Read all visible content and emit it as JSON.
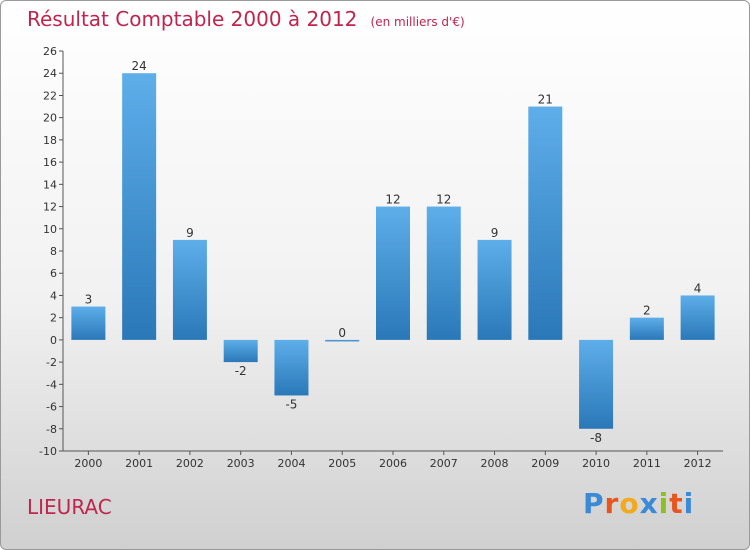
{
  "chart_data": {
    "type": "bar",
    "title": "Résultat Comptable 2000 à 2012",
    "unit_label": "(en milliers d'€)",
    "categories": [
      "2000",
      "2001",
      "2002",
      "2003",
      "2004",
      "2005",
      "2006",
      "2007",
      "2008",
      "2009",
      "2010",
      "2011",
      "2012"
    ],
    "values": [
      3,
      24,
      9,
      -2,
      -5,
      0,
      12,
      12,
      9,
      21,
      -8,
      2,
      4
    ],
    "ylim": [
      -10,
      26
    ],
    "yticks": [
      -10,
      -8,
      -6,
      -4,
      -2,
      0,
      2,
      4,
      6,
      8,
      10,
      12,
      14,
      16,
      18,
      20,
      22,
      24,
      26
    ],
    "xlabel": "",
    "ylabel": "",
    "grid": false,
    "legend": "none"
  },
  "footer": {
    "location": "LIEURAC",
    "brand": "Proxiti"
  },
  "colors": {
    "title": "#c0254e",
    "bar_top": "#5eaeea",
    "bar_bottom": "#2a78b8",
    "axis": "#555555",
    "brand_letters": [
      "#3a8ad8",
      "#e8551f",
      "#f2a91a",
      "#3a8ad8",
      "#8dbf24",
      "#e8551f",
      "#3a8ad8"
    ]
  }
}
